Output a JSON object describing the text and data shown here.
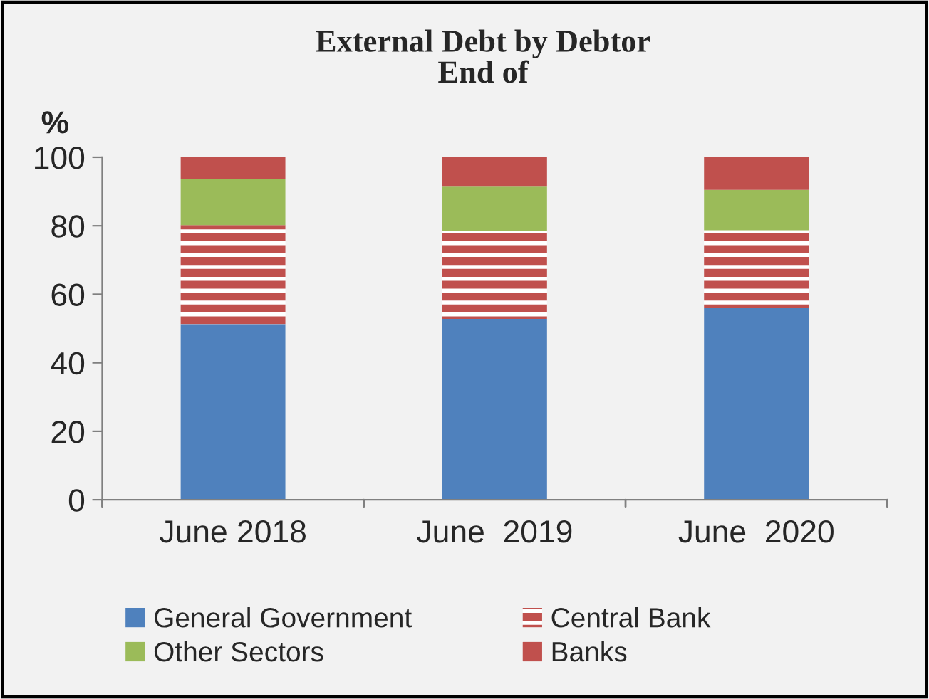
{
  "chart_data": {
    "type": "bar",
    "title": "External Debt by Debtor\nEnd of",
    "ylabel": "%",
    "stacked": true,
    "categories": [
      "June 2018",
      "June  2019",
      "June  2020"
    ],
    "series": [
      {
        "name": "General Government",
        "color": "#4f81bd",
        "values": [
          51.3,
          52.8,
          56.1
        ]
      },
      {
        "name": "Central Bank",
        "color": "#c0504d",
        "values": [
          28.9,
          25.6,
          22.6
        ]
      },
      {
        "name": "Other Sectors",
        "color": "#9bbb59",
        "values": [
          13.4,
          13.0,
          11.8
        ]
      },
      {
        "name": "Banks",
        "color": "#c0504d",
        "values": [
          6.4,
          8.6,
          9.5
        ]
      }
    ],
    "ylim": [
      0,
      100
    ],
    "yticks": [
      0,
      20,
      40,
      60,
      80,
      100
    ],
    "grid": false,
    "legend": "bottom"
  }
}
